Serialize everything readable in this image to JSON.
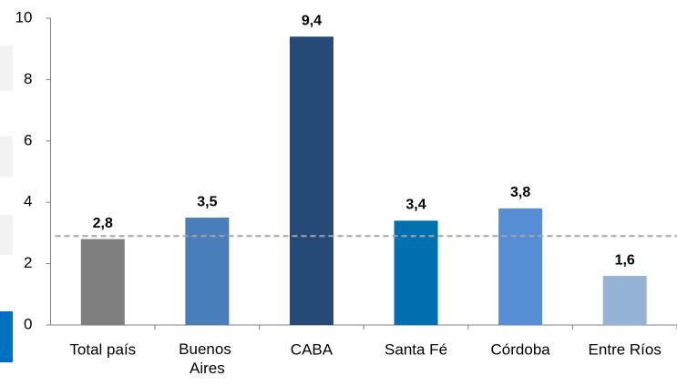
{
  "chart_data": {
    "type": "bar",
    "categories": [
      "Total país",
      "Buenos Aires",
      "CABA",
      "Santa Fé",
      "Córdoba",
      "Entre Ríos"
    ],
    "values": [
      2.8,
      3.5,
      9.4,
      3.4,
      3.8,
      1.6
    ],
    "value_labels": [
      "2,8",
      "3,5",
      "9,4",
      "3,4",
      "3,8",
      "1,6"
    ],
    "colors": [
      "#7f7f7f",
      "#4a7ebb",
      "#254a77",
      "#0070b0",
      "#558ed5",
      "#95b3d7"
    ],
    "label_color": "#1f3864",
    "reference_line": 2.9,
    "ylim": [
      0,
      10
    ],
    "yticks": [
      0,
      2,
      4,
      6,
      8,
      10
    ]
  }
}
